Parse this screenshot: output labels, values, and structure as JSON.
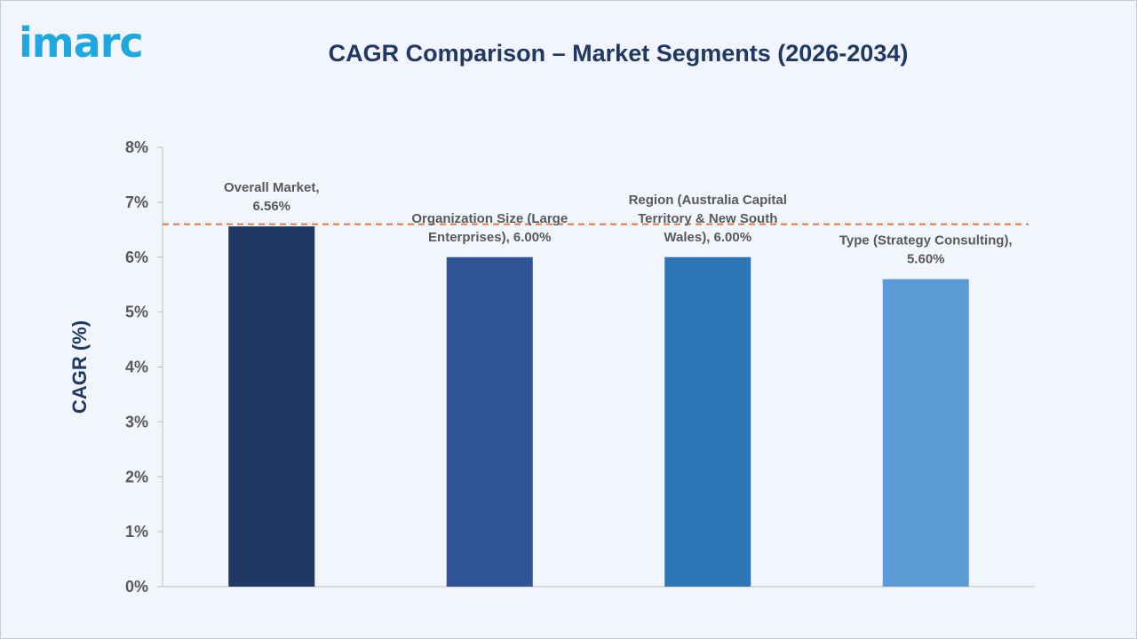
{
  "brand": {
    "logo_text": "imarc",
    "logo_color": "#1fa8e0"
  },
  "chart_data": {
    "type": "bar",
    "title": "CAGR Comparison – Market Segments (2026-2034)",
    "ylabel": "CAGR (%)",
    "xlabel": "",
    "ylim": [
      0,
      8
    ],
    "yticks": [
      0,
      1,
      2,
      3,
      4,
      5,
      6,
      7,
      8
    ],
    "ytick_suffix": "%",
    "grid": false,
    "categories": [
      "Overall Market",
      "Organization Size (Large Enterprises)",
      "Region (Australia Capital Territory & New South Wales)",
      "Type (Strategy Consulting)"
    ],
    "values": [
      6.56,
      6.0,
      6.0,
      5.6
    ],
    "data_labels": [
      [
        "Overall Market,",
        "6.56%"
      ],
      [
        "Organization Size (Large",
        "Enterprises), 6.00%"
      ],
      [
        "Region (Australia Capital",
        "Territory & New South",
        "Wales), 6.00%"
      ],
      [
        "Type (Strategy Consulting),",
        "5.60%"
      ]
    ],
    "bar_colors": [
      "#1f3864",
      "#2f5597",
      "#2e75b6",
      "#5b9bd5"
    ],
    "reference_line": {
      "value": 6.6,
      "color": "#e07b39",
      "style": "dashed"
    }
  }
}
